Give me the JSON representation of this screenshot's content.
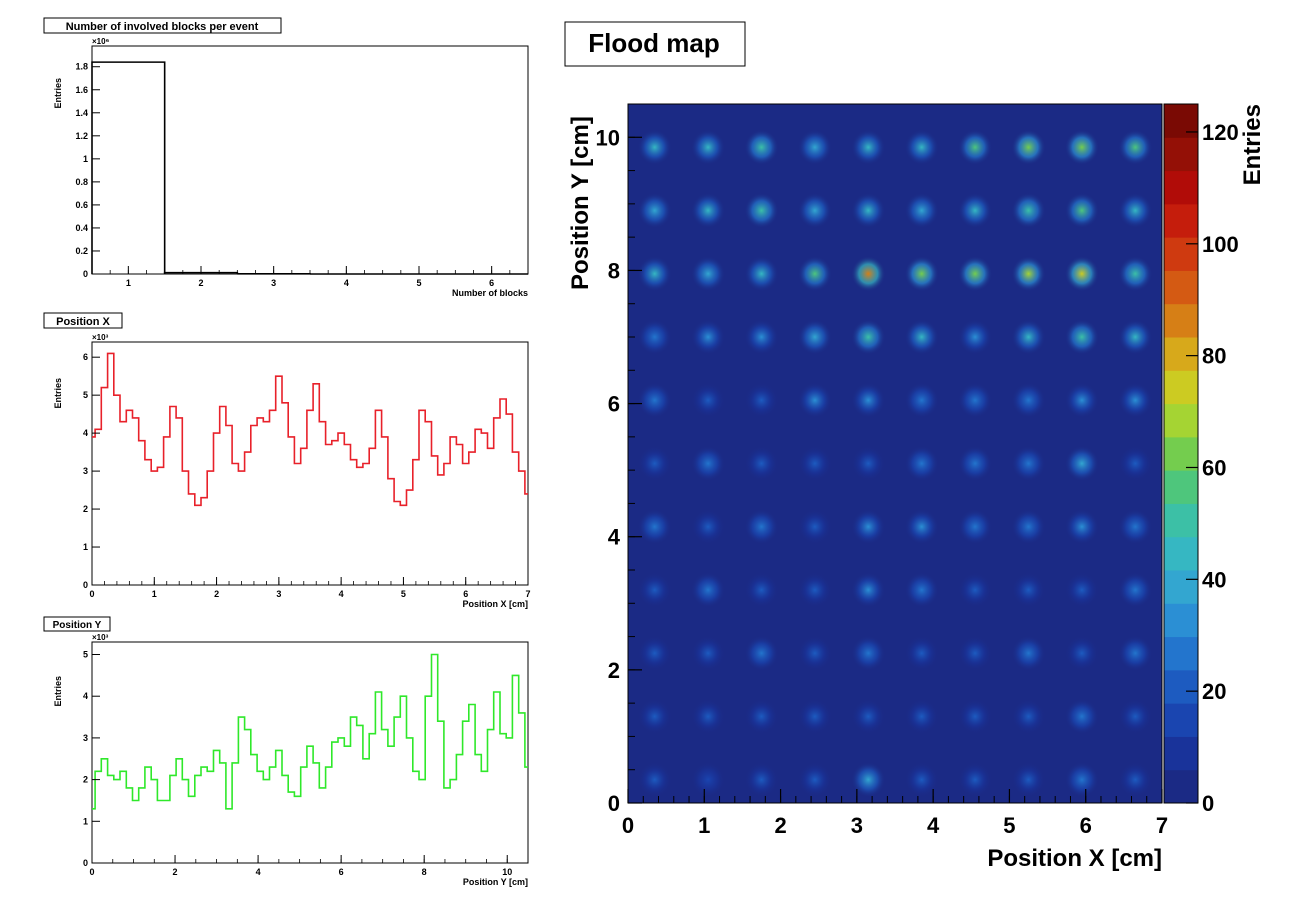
{
  "charts": {
    "blocks": {
      "title": "Number of involved blocks per event",
      "xlabel": "Number of blocks",
      "ylabel": "Entries",
      "yexp": "×10⁶",
      "xticks": [
        "1",
        "2",
        "3",
        "4",
        "5",
        "6"
      ],
      "yticks": [
        "0",
        "0.2",
        "0.4",
        "0.6",
        "0.8",
        "1",
        "1.2",
        "1.4",
        "1.6",
        "1.8"
      ]
    },
    "posx": {
      "title": "Position X",
      "xlabel": "Position X [cm]",
      "ylabel": "Entries",
      "yexp": "×10³",
      "xticks": [
        "0",
        "1",
        "2",
        "3",
        "4",
        "5",
        "6",
        "7"
      ],
      "yticks": [
        "0",
        "1",
        "2",
        "3",
        "4",
        "5",
        "6"
      ]
    },
    "posy": {
      "title": "Position Y",
      "xlabel": "Position Y [cm]",
      "ylabel": "Entries",
      "yexp": "×10³",
      "xticks": [
        "0",
        "2",
        "4",
        "6",
        "8",
        "10"
      ],
      "yticks": [
        "0",
        "1",
        "2",
        "3",
        "4",
        "5"
      ]
    },
    "flood": {
      "title": "Flood map",
      "xlabel": "Position X [cm]",
      "ylabel": "Position Y [cm]",
      "zlabel": "Entries",
      "xticks": [
        "0",
        "1",
        "2",
        "3",
        "4",
        "5",
        "6",
        "7"
      ],
      "yticks": [
        "0",
        "2",
        "4",
        "6",
        "8",
        "10"
      ],
      "zticks": [
        "0",
        "20",
        "40",
        "60",
        "80",
        "100",
        "120"
      ]
    }
  },
  "chart_data": [
    {
      "type": "bar",
      "title": "Number of involved blocks per event",
      "xlabel": "Number of blocks",
      "ylabel": "Entries",
      "y_multiplier": 1000000,
      "xlim": [
        0.5,
        6.5
      ],
      "ylim": [
        0,
        1.98
      ],
      "bins": [
        1,
        2,
        3,
        4,
        5,
        6
      ],
      "values": [
        1.84,
        0.012,
        0.002,
        0,
        0,
        0
      ],
      "color": "#000000"
    },
    {
      "type": "line",
      "title": "Position X",
      "xlabel": "Position X [cm]",
      "ylabel": "Entries",
      "y_multiplier": 1000,
      "xlim": [
        0,
        7
      ],
      "ylim": [
        0,
        6.4
      ],
      "color": "#e8212a",
      "x": [
        0.0,
        0.1,
        0.2,
        0.3,
        0.4,
        0.5,
        0.6,
        0.7,
        0.8,
        0.9,
        1.0,
        1.1,
        1.2,
        1.3,
        1.4,
        1.5,
        1.6,
        1.7,
        1.8,
        1.9,
        2.0,
        2.1,
        2.2,
        2.3,
        2.4,
        2.5,
        2.6,
        2.7,
        2.8,
        2.9,
        3.0,
        3.1,
        3.2,
        3.3,
        3.4,
        3.5,
        3.6,
        3.7,
        3.8,
        3.9,
        4.0,
        4.1,
        4.2,
        4.3,
        4.4,
        4.5,
        4.6,
        4.7,
        4.8,
        4.9,
        5.0,
        5.1,
        5.2,
        5.3,
        5.4,
        5.5,
        5.6,
        5.7,
        5.8,
        5.9,
        6.0,
        6.1,
        6.2,
        6.3,
        6.4,
        6.5,
        6.6,
        6.7,
        6.8,
        6.9,
        7.0
      ],
      "values": [
        3.9,
        4.1,
        5.2,
        6.1,
        5.0,
        4.3,
        4.6,
        4.4,
        3.8,
        3.3,
        3.0,
        3.1,
        3.9,
        4.7,
        4.4,
        3.0,
        2.4,
        2.1,
        2.3,
        3.0,
        4.0,
        4.7,
        4.2,
        3.2,
        3.0,
        3.5,
        4.2,
        4.4,
        4.3,
        4.6,
        5.5,
        4.8,
        3.9,
        3.2,
        3.6,
        4.6,
        5.3,
        4.3,
        3.7,
        3.8,
        4.0,
        3.7,
        3.3,
        3.1,
        3.2,
        3.6,
        4.6,
        3.9,
        2.8,
        2.2,
        2.1,
        2.5,
        3.3,
        4.6,
        4.3,
        3.4,
        2.9,
        3.2,
        3.9,
        3.7,
        3.2,
        3.5,
        4.1,
        4.0,
        3.6,
        4.4,
        4.9,
        4.5,
        3.5,
        3.0,
        2.4
      ]
    },
    {
      "type": "line",
      "title": "Position Y",
      "xlabel": "Position Y [cm]",
      "ylabel": "Entries",
      "y_multiplier": 1000,
      "xlim": [
        0,
        10.5
      ],
      "ylim": [
        0,
        5.3
      ],
      "color": "#2fe82a",
      "x": [
        0.0,
        0.15,
        0.3,
        0.45,
        0.6,
        0.75,
        0.9,
        1.05,
        1.2,
        1.35,
        1.5,
        1.65,
        1.8,
        1.95,
        2.1,
        2.25,
        2.4,
        2.55,
        2.7,
        2.85,
        3.0,
        3.15,
        3.3,
        3.45,
        3.6,
        3.75,
        3.9,
        4.05,
        4.2,
        4.35,
        4.5,
        4.65,
        4.8,
        4.95,
        5.1,
        5.25,
        5.4,
        5.55,
        5.7,
        5.85,
        6.0,
        6.15,
        6.3,
        6.45,
        6.6,
        6.75,
        6.9,
        7.05,
        7.2,
        7.35,
        7.5,
        7.65,
        7.8,
        7.95,
        8.1,
        8.25,
        8.4,
        8.55,
        8.7,
        8.85,
        9.0,
        9.15,
        9.3,
        9.45,
        9.6,
        9.75,
        9.9,
        10.05,
        10.2,
        10.35,
        10.5
      ],
      "values": [
        1.3,
        2.2,
        2.5,
        2.1,
        2.0,
        2.2,
        1.8,
        1.5,
        1.8,
        2.3,
        2.0,
        1.5,
        1.5,
        2.1,
        2.5,
        2.0,
        1.6,
        2.1,
        2.3,
        2.2,
        2.7,
        2.4,
        1.3,
        2.4,
        3.5,
        3.2,
        2.6,
        2.2,
        2.0,
        2.3,
        2.7,
        2.1,
        1.7,
        1.6,
        2.3,
        2.8,
        2.4,
        1.8,
        2.3,
        2.9,
        3.0,
        2.8,
        3.5,
        3.3,
        2.5,
        3.1,
        4.1,
        3.2,
        2.8,
        3.5,
        4.0,
        3.0,
        2.2,
        2.0,
        4.0,
        5.0,
        3.4,
        1.8,
        2.0,
        2.6,
        3.4,
        3.8,
        2.6,
        2.2,
        3.2,
        4.1,
        3.1,
        3.0,
        4.5,
        3.6,
        2.3
      ]
    },
    {
      "type": "heatmap",
      "title": "Flood map",
      "xlabel": "Position X [cm]",
      "ylabel": "Position Y [cm]",
      "zlabel": "Entries",
      "xlim": [
        0,
        7
      ],
      "ylim": [
        0,
        10.5
      ],
      "zlim": [
        0,
        125
      ],
      "palette": [
        "#1b2a85",
        "#19339a",
        "#1a45b0",
        "#1d5bc0",
        "#2375cd",
        "#2b8fd4",
        "#33a6d0",
        "#36b7c2",
        "#3cc0a6",
        "#4ec67c",
        "#74cd4e",
        "#a5d433",
        "#cccb22",
        "#d7a91b",
        "#d67f16",
        "#d45a13",
        "#cf3a10",
        "#c51d0c",
        "#b10c08",
        "#941006",
        "#7a0a04"
      ],
      "grid_x": [
        0.35,
        1.05,
        1.75,
        2.45,
        3.15,
        3.85,
        4.55,
        5.25,
        5.95,
        6.65
      ],
      "grid_y": [
        0.35,
        1.3,
        2.25,
        3.2,
        4.15,
        5.1,
        6.05,
        7.0,
        7.95,
        8.9,
        9.85
      ],
      "cell_width": 0.7,
      "cell_height": 0.95,
      "values": [
        [
          18,
          16,
          20,
          22,
          38,
          20,
          18,
          22,
          24,
          20
        ],
        [
          22,
          18,
          18,
          20,
          20,
          18,
          20,
          22,
          24,
          22
        ],
        [
          20,
          20,
          26,
          22,
          26,
          22,
          22,
          26,
          22,
          24
        ],
        [
          22,
          26,
          22,
          22,
          30,
          28,
          22,
          22,
          22,
          24
        ],
        [
          24,
          22,
          24,
          22,
          30,
          34,
          28,
          28,
          32,
          26
        ],
        [
          20,
          24,
          22,
          22,
          22,
          24,
          24,
          24,
          36,
          22
        ],
        [
          28,
          20,
          22,
          30,
          30,
          28,
          24,
          24,
          32,
          32
        ],
        [
          26,
          30,
          34,
          40,
          52,
          46,
          34,
          42,
          48,
          44
        ],
        [
          44,
          40,
          46,
          58,
          84,
          62,
          60,
          66,
          72,
          50
        ],
        [
          36,
          42,
          48,
          36,
          42,
          40,
          44,
          52,
          58,
          42
        ],
        [
          42,
          46,
          48,
          36,
          44,
          46,
          56,
          60,
          62,
          58
        ]
      ]
    }
  ]
}
